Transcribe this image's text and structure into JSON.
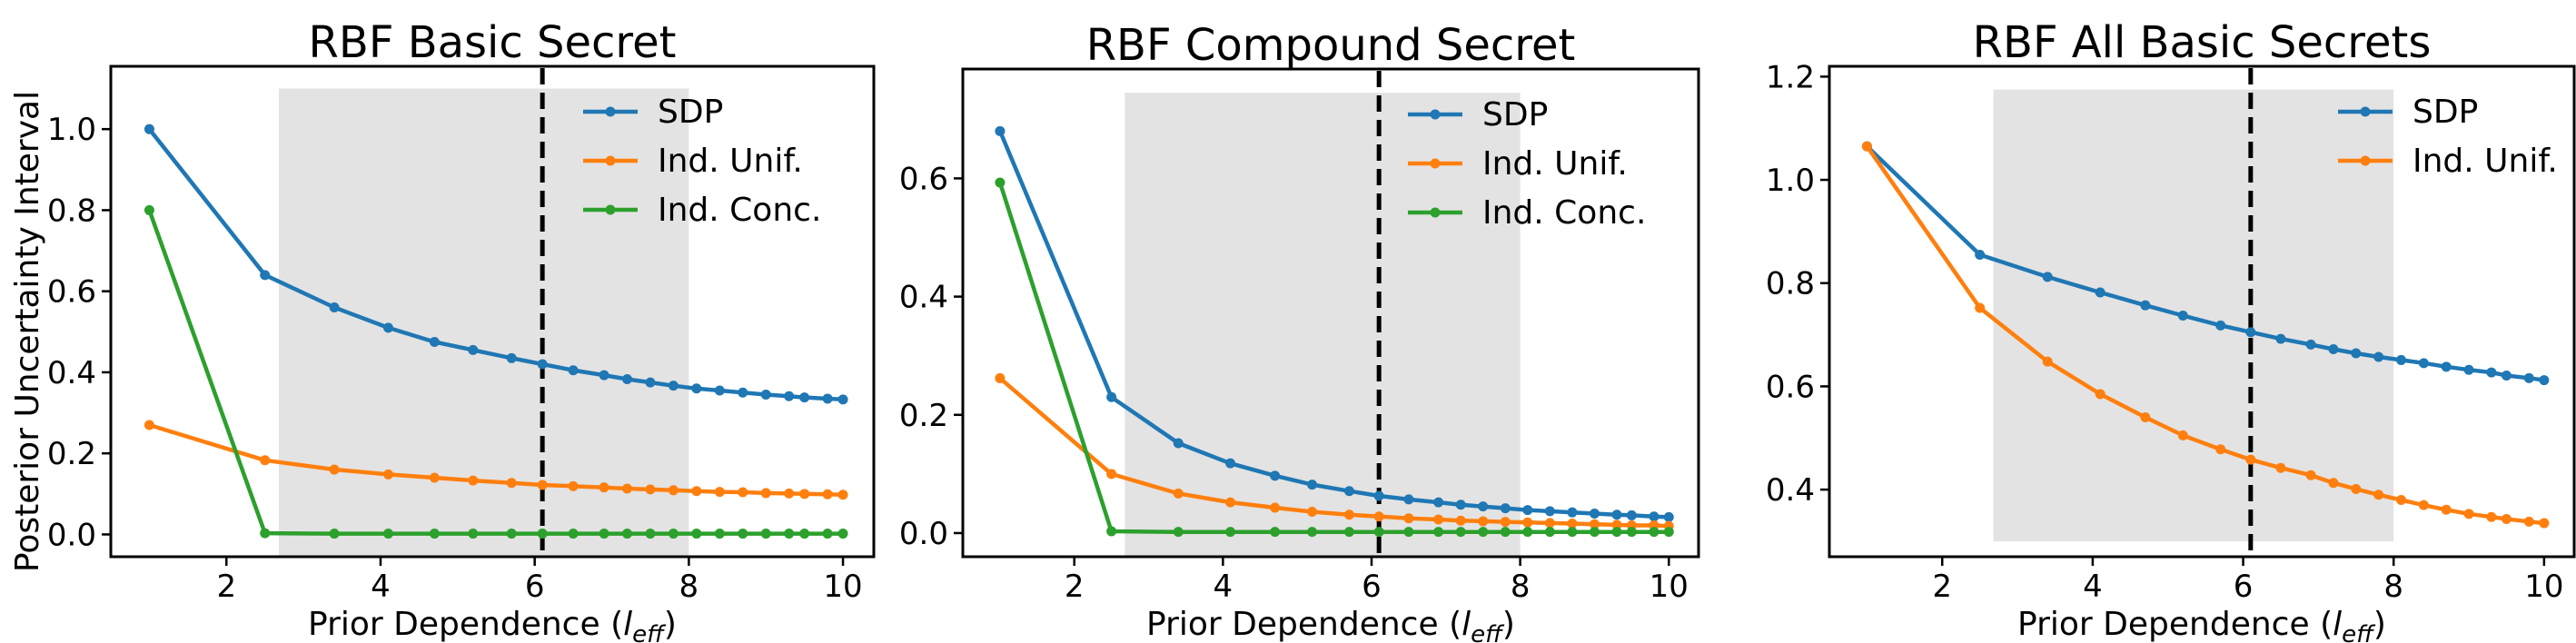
{
  "figure": {
    "ylabel": "Posterior Uncertainty Interval"
  },
  "chart_data": [
    {
      "type": "line",
      "title": "RBF Basic Secret",
      "xlabel": "Prior Dependence (",
      "xlabel_symbol": "l",
      "xlabel_subscript": "eff",
      "xlabel_close": ")",
      "xlim": [
        0.5,
        10.4
      ],
      "ylim": [
        -0.055,
        1.155
      ],
      "xticks": [
        2,
        4,
        6,
        8,
        10
      ],
      "xtick_labels": [
        "2",
        "4",
        "6",
        "8",
        "10"
      ],
      "yticks": [
        0.0,
        0.2,
        0.4,
        0.6,
        0.8,
        1.0
      ],
      "ytick_labels": [
        "0.0",
        "0.2",
        "0.4",
        "0.6",
        "0.8",
        "1.0"
      ],
      "shaded_region": {
        "x0": 2.68,
        "x1": 8.0,
        "y0": -0.055,
        "y1": 1.1
      },
      "vline": 6.1,
      "legend_position": "upper-right",
      "x": [
        1.0,
        2.5,
        3.4,
        4.1,
        4.7,
        5.2,
        5.7,
        6.1,
        6.5,
        6.9,
        7.2,
        7.5,
        7.8,
        8.1,
        8.4,
        8.7,
        9.0,
        9.3,
        9.5,
        9.8,
        10.0
      ],
      "series": [
        {
          "name": "SDP",
          "color": "#1f77b4",
          "values": [
            1.0,
            0.64,
            0.56,
            0.51,
            0.475,
            0.455,
            0.435,
            0.42,
            0.405,
            0.393,
            0.383,
            0.375,
            0.367,
            0.36,
            0.355,
            0.35,
            0.345,
            0.341,
            0.338,
            0.335,
            0.333
          ]
        },
        {
          "name": "Ind. Unif.",
          "color": "#ff7f0e",
          "values": [
            0.27,
            0.183,
            0.16,
            0.148,
            0.14,
            0.133,
            0.127,
            0.122,
            0.119,
            0.116,
            0.113,
            0.111,
            0.109,
            0.107,
            0.105,
            0.104,
            0.102,
            0.101,
            0.1,
            0.099,
            0.098
          ]
        },
        {
          "name": "Ind. Conc.",
          "color": "#2ca02c",
          "values": [
            0.8,
            0.003,
            0.002,
            0.002,
            0.002,
            0.002,
            0.002,
            0.002,
            0.002,
            0.002,
            0.002,
            0.002,
            0.002,
            0.002,
            0.002,
            0.002,
            0.002,
            0.002,
            0.002,
            0.002,
            0.002
          ]
        }
      ]
    },
    {
      "type": "line",
      "title": "RBF Compound Secret",
      "xlabel": "Prior Dependence (",
      "xlabel_symbol": "l",
      "xlabel_subscript": "eff",
      "xlabel_close": ")",
      "xlim": [
        0.5,
        10.4
      ],
      "ylim": [
        -0.04,
        0.785
      ],
      "xticks": [
        2,
        4,
        6,
        8,
        10
      ],
      "xtick_labels": [
        "2",
        "4",
        "6",
        "8",
        "10"
      ],
      "yticks": [
        0.0,
        0.2,
        0.4,
        0.6
      ],
      "ytick_labels": [
        "0.0",
        "0.2",
        "0.4",
        "0.6"
      ],
      "shaded_region": {
        "x0": 2.68,
        "x1": 8.0,
        "y0": -0.04,
        "y1": 0.745
      },
      "vline": 6.1,
      "legend_position": "upper-right",
      "x": [
        1.0,
        2.5,
        3.4,
        4.1,
        4.7,
        5.2,
        5.7,
        6.1,
        6.5,
        6.9,
        7.2,
        7.5,
        7.8,
        8.1,
        8.4,
        8.7,
        9.0,
        9.3,
        9.5,
        9.8,
        10.0
      ],
      "series": [
        {
          "name": "SDP",
          "color": "#1f77b4",
          "values": [
            0.68,
            0.23,
            0.152,
            0.118,
            0.097,
            0.082,
            0.071,
            0.063,
            0.057,
            0.052,
            0.048,
            0.045,
            0.042,
            0.039,
            0.037,
            0.035,
            0.033,
            0.031,
            0.03,
            0.028,
            0.027
          ]
        },
        {
          "name": "Ind. Unif.",
          "color": "#ff7f0e",
          "values": [
            0.262,
            0.1,
            0.067,
            0.052,
            0.043,
            0.036,
            0.031,
            0.028,
            0.025,
            0.023,
            0.021,
            0.02,
            0.019,
            0.018,
            0.017,
            0.016,
            0.015,
            0.014,
            0.013,
            0.013,
            0.012
          ]
        },
        {
          "name": "Ind. Conc.",
          "color": "#2ca02c",
          "values": [
            0.593,
            0.003,
            0.002,
            0.002,
            0.002,
            0.002,
            0.002,
            0.002,
            0.002,
            0.002,
            0.002,
            0.002,
            0.002,
            0.002,
            0.002,
            0.002,
            0.002,
            0.002,
            0.002,
            0.002,
            0.002
          ]
        }
      ]
    },
    {
      "type": "line",
      "title": "RBF All Basic Secrets",
      "xlabel": "Prior Dependence (",
      "xlabel_symbol": "l",
      "xlabel_subscript": "eff",
      "xlabel_close": ")",
      "xlim": [
        0.5,
        10.4
      ],
      "ylim": [
        0.27,
        1.22
      ],
      "xticks": [
        2,
        4,
        6,
        8,
        10
      ],
      "xtick_labels": [
        "2",
        "4",
        "6",
        "8",
        "10"
      ],
      "yticks": [
        0.4,
        0.6,
        0.8,
        1.0,
        1.2
      ],
      "ytick_labels": [
        "0.4",
        "0.6",
        "0.8",
        "1.0",
        "1.2"
      ],
      "shaded_region": {
        "x0": 2.68,
        "x1": 8.0,
        "y0": 0.3,
        "y1": 1.175
      },
      "vline": 6.1,
      "legend_position": "upper-right",
      "x": [
        1.0,
        2.5,
        3.4,
        4.1,
        4.7,
        5.2,
        5.7,
        6.1,
        6.5,
        6.9,
        7.2,
        7.5,
        7.8,
        8.1,
        8.4,
        8.7,
        9.0,
        9.3,
        9.5,
        9.8,
        10.0
      ],
      "series": [
        {
          "name": "SDP",
          "color": "#1f77b4",
          "values": [
            1.065,
            0.855,
            0.812,
            0.782,
            0.757,
            0.737,
            0.718,
            0.705,
            0.692,
            0.681,
            0.672,
            0.664,
            0.657,
            0.651,
            0.645,
            0.638,
            0.632,
            0.627,
            0.621,
            0.616,
            0.612
          ]
        },
        {
          "name": "Ind. Unif.",
          "color": "#ff7f0e",
          "values": [
            1.065,
            0.752,
            0.648,
            0.585,
            0.54,
            0.505,
            0.478,
            0.458,
            0.442,
            0.428,
            0.413,
            0.401,
            0.39,
            0.38,
            0.37,
            0.361,
            0.353,
            0.347,
            0.343,
            0.338,
            0.335
          ]
        }
      ]
    }
  ]
}
